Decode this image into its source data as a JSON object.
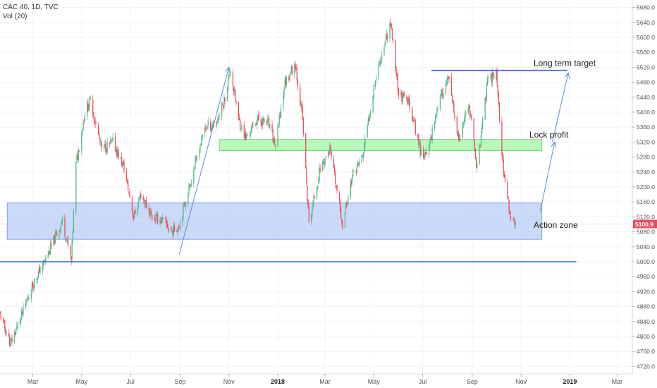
{
  "legend": {
    "symbol_line": "CAC 40, 1D, TVC",
    "volume_line": "Vol (20)"
  },
  "colors": {
    "up": "#53b987",
    "down": "#eb4d5c",
    "action_zone_fill": "#aec6f4",
    "lock_profit_fill": "#98f598",
    "line": "#2a63c8",
    "arrow": "#5b8ad6",
    "price_label_bg": "#eb4d5c"
  },
  "chart_data": {
    "type": "candlestick",
    "x_axis": {
      "labels": [
        "Mar",
        "May",
        "Jul",
        "Sep",
        "Nov",
        "2018",
        "Mar",
        "May",
        "Jul",
        "Sep",
        "Nov",
        "2019",
        "Mar"
      ],
      "dates": [
        "2017-03-01",
        "2017-05-01",
        "2017-07-01",
        "2017-09-01",
        "2017-11-01",
        "2018-01-01",
        "2018-03-01",
        "2018-05-01",
        "2018-07-01",
        "2018-09-01",
        "2018-11-01",
        "2019-01-01",
        "2019-03-01"
      ],
      "range": [
        "2017-01-19",
        "2019-03-20"
      ]
    },
    "y_axis": {
      "ticks": [
        4720,
        4760,
        4800,
        4840,
        4880,
        4920,
        4960,
        5000,
        5040,
        5080,
        5120,
        5160,
        5200,
        5240,
        5280,
        5320,
        5360,
        5400,
        5440,
        5480,
        5520,
        5560,
        5600,
        5640,
        5680
      ],
      "range": [
        4700,
        5700
      ],
      "position": "right"
    },
    "last_price": 5100.9,
    "price_path": [
      {
        "date": "2017-01-19",
        "close": 4860
      },
      {
        "date": "2017-02-01",
        "close": 4780
      },
      {
        "date": "2017-02-14",
        "close": 4850
      },
      {
        "date": "2017-03-01",
        "close": 4940
      },
      {
        "date": "2017-03-20",
        "close": 5020
      },
      {
        "date": "2017-04-07",
        "close": 5110
      },
      {
        "date": "2017-04-18",
        "close": 5000
      },
      {
        "date": "2017-04-24",
        "close": 5260
      },
      {
        "date": "2017-05-05",
        "close": 5400
      },
      {
        "date": "2017-05-12",
        "close": 5430
      },
      {
        "date": "2017-05-26",
        "close": 5300
      },
      {
        "date": "2017-06-09",
        "close": 5320
      },
      {
        "date": "2017-06-23",
        "close": 5250
      },
      {
        "date": "2017-07-05",
        "close": 5120
      },
      {
        "date": "2017-07-14",
        "close": 5180
      },
      {
        "date": "2017-07-28",
        "close": 5120
      },
      {
        "date": "2017-08-10",
        "close": 5110
      },
      {
        "date": "2017-08-22",
        "close": 5080
      },
      {
        "date": "2017-08-31",
        "close": 5100
      },
      {
        "date": "2017-09-15",
        "close": 5220
      },
      {
        "date": "2017-10-02",
        "close": 5360
      },
      {
        "date": "2017-10-16",
        "close": 5370
      },
      {
        "date": "2017-10-26",
        "close": 5430
      },
      {
        "date": "2017-11-03",
        "close": 5515
      },
      {
        "date": "2017-11-13",
        "close": 5380
      },
      {
        "date": "2017-11-22",
        "close": 5330
      },
      {
        "date": "2017-12-06",
        "close": 5380
      },
      {
        "date": "2017-12-20",
        "close": 5370
      },
      {
        "date": "2017-12-29",
        "close": 5310
      },
      {
        "date": "2018-01-10",
        "close": 5480
      },
      {
        "date": "2018-01-23",
        "close": 5530
      },
      {
        "date": "2018-02-01",
        "close": 5380
      },
      {
        "date": "2018-02-09",
        "close": 5100
      },
      {
        "date": "2018-02-23",
        "close": 5250
      },
      {
        "date": "2018-03-07",
        "close": 5300
      },
      {
        "date": "2018-03-23",
        "close": 5100
      },
      {
        "date": "2018-04-04",
        "close": 5230
      },
      {
        "date": "2018-04-17",
        "close": 5280
      },
      {
        "date": "2018-05-02",
        "close": 5480
      },
      {
        "date": "2018-05-15",
        "close": 5590
      },
      {
        "date": "2018-05-22",
        "close": 5640
      },
      {
        "date": "2018-06-01",
        "close": 5450
      },
      {
        "date": "2018-06-15",
        "close": 5420
      },
      {
        "date": "2018-06-28",
        "close": 5300
      },
      {
        "date": "2018-07-06",
        "close": 5280
      },
      {
        "date": "2018-07-20",
        "close": 5420
      },
      {
        "date": "2018-08-02",
        "close": 5490
      },
      {
        "date": "2018-08-15",
        "close": 5320
      },
      {
        "date": "2018-08-28",
        "close": 5420
      },
      {
        "date": "2018-09-07",
        "close": 5250
      },
      {
        "date": "2018-09-20",
        "close": 5480
      },
      {
        "date": "2018-10-01",
        "close": 5510
      },
      {
        "date": "2018-10-10",
        "close": 5230
      },
      {
        "date": "2018-10-19",
        "close": 5120
      },
      {
        "date": "2018-10-26",
        "close": 5100
      }
    ],
    "annotations": [
      {
        "type": "zone",
        "label": "Action zone",
        "start": "2017-01-28",
        "end": "2018-11-27",
        "low": 5060,
        "high": 5157
      },
      {
        "type": "zone",
        "label": "Lock profit",
        "start": "2017-10-20",
        "end": "2018-11-27",
        "low": 5297,
        "high": 5327
      },
      {
        "type": "horizontal_line",
        "label": "Long term target",
        "start": "2018-07-12",
        "end": "2018-12-29",
        "value": 5512
      },
      {
        "type": "horizontal_line",
        "label": "",
        "start": "2017-01-08",
        "end": "2019-01-09",
        "value": 5000
      },
      {
        "type": "arrow",
        "from": {
          "date": "2017-08-31",
          "value": 5020
        },
        "to": {
          "date": "2017-11-01",
          "value": 5520
        }
      },
      {
        "type": "arrow",
        "from": {
          "date": "2018-11-25",
          "value": 5135
        },
        "to": {
          "date": "2018-12-13",
          "value": 5320
        }
      },
      {
        "type": "arrow",
        "from": {
          "date": "2018-12-10",
          "value": 5320
        },
        "to": {
          "date": "2018-12-30",
          "value": 5505
        }
      }
    ]
  }
}
